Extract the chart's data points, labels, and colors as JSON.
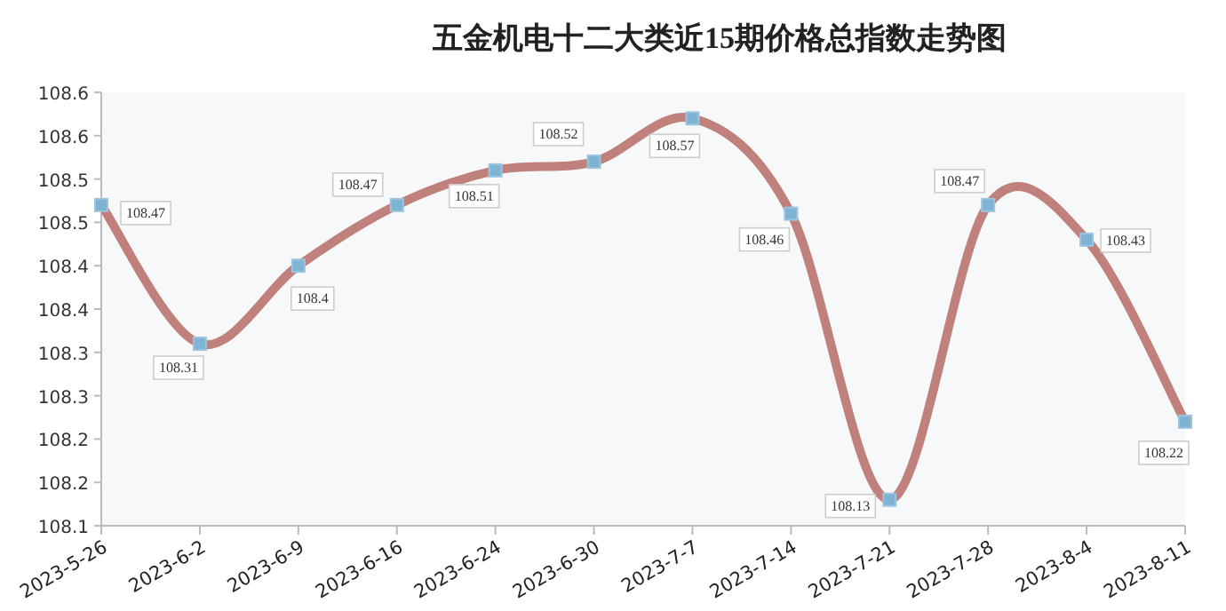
{
  "chart_data": {
    "type": "line",
    "title": "五金机电十二大类近15期价格总指数走势图",
    "categories": [
      "2023-5-26",
      "2023-6-2",
      "2023-6-9",
      "2023-6-16",
      "2023-6-24",
      "2023-6-30",
      "2023-7-7",
      "2023-7-14",
      "2023-7-21",
      "2023-7-28",
      "2023-8-4",
      "2023-8-11"
    ],
    "series": [
      {
        "color": "#c0807c",
        "values": [
          108.47,
          108.31,
          108.4,
          108.47,
          108.51,
          108.52,
          108.57,
          108.46,
          108.13,
          108.47,
          108.43,
          108.22
        ]
      }
    ],
    "ylim": [
      108.1,
      108.6
    ],
    "yticks": [
      {
        "value": 108.1,
        "label": "108.1"
      },
      {
        "value": 108.15,
        "label": "108.2"
      },
      {
        "value": 108.2,
        "label": "108.2"
      },
      {
        "value": 108.25,
        "label": "108.3"
      },
      {
        "value": 108.3,
        "label": "108.3"
      },
      {
        "value": 108.35,
        "label": "108.4"
      },
      {
        "value": 108.4,
        "label": "108.4"
      },
      {
        "value": 108.45,
        "label": "108.5"
      },
      {
        "value": 108.5,
        "label": "108.5"
      },
      {
        "value": 108.55,
        "label": "108.6"
      },
      {
        "value": 108.6,
        "label": "108.6"
      }
    ],
    "marker": "square",
    "data_labels": true,
    "grid": false
  }
}
